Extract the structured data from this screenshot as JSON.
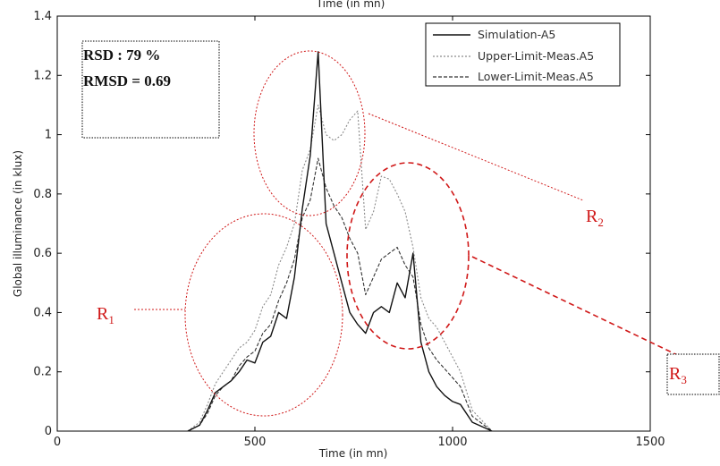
{
  "chart_data": {
    "type": "line",
    "title": "Time (in mn)",
    "xlabel": "Time (in mn)",
    "ylabel": "Global illuminance (in klux)",
    "xlim": [
      0,
      1500
    ],
    "ylim": [
      0,
      1.4
    ],
    "x_ticks": [
      0,
      500,
      1000,
      1500
    ],
    "x_tick_labels": [
      "0",
      "500",
      "1000",
      "1500"
    ],
    "y_ticks": [
      0,
      0.2,
      0.4,
      0.6,
      0.8,
      1,
      1.2,
      1.4
    ],
    "y_tick_labels": [
      "0",
      "0.2",
      "0.4",
      "0.6",
      "0.8",
      "1",
      "1.2",
      "1.4"
    ],
    "grid": false,
    "legend_position": "top-right",
    "series": [
      {
        "name": "Simulation-A5",
        "style": "solid",
        "color": "#111111",
        "x": [
          330,
          360,
          380,
          400,
          420,
          440,
          460,
          480,
          500,
          520,
          540,
          560,
          580,
          600,
          620,
          640,
          660,
          680,
          700,
          720,
          740,
          760,
          780,
          800,
          820,
          840,
          860,
          880,
          900,
          920,
          940,
          960,
          980,
          1000,
          1020,
          1050,
          1100
        ],
        "y": [
          0,
          0.02,
          0.07,
          0.13,
          0.15,
          0.17,
          0.2,
          0.24,
          0.23,
          0.3,
          0.32,
          0.4,
          0.38,
          0.52,
          0.75,
          0.93,
          1.28,
          0.7,
          0.6,
          0.5,
          0.4,
          0.36,
          0.33,
          0.4,
          0.42,
          0.4,
          0.5,
          0.45,
          0.6,
          0.3,
          0.2,
          0.15,
          0.12,
          0.1,
          0.09,
          0.03,
          0
        ]
      },
      {
        "name": "Upper-Limit-Meas.A5",
        "style": "dotted",
        "color": "#8a8a8a",
        "x": [
          330,
          360,
          380,
          400,
          420,
          440,
          460,
          480,
          500,
          520,
          540,
          560,
          580,
          600,
          620,
          640,
          660,
          680,
          700,
          720,
          740,
          760,
          780,
          800,
          820,
          840,
          860,
          880,
          900,
          920,
          940,
          960,
          980,
          1000,
          1020,
          1050,
          1100
        ],
        "y": [
          0,
          0.03,
          0.09,
          0.16,
          0.2,
          0.24,
          0.28,
          0.3,
          0.34,
          0.42,
          0.46,
          0.56,
          0.62,
          0.7,
          0.88,
          0.95,
          1.1,
          1.0,
          0.98,
          1.0,
          1.05,
          1.08,
          0.68,
          0.74,
          0.86,
          0.85,
          0.8,
          0.74,
          0.62,
          0.45,
          0.38,
          0.35,
          0.3,
          0.25,
          0.2,
          0.07,
          0
        ]
      },
      {
        "name": "Lower-Limit-Meas.A5",
        "style": "dashed",
        "color": "#333333",
        "x": [
          330,
          360,
          380,
          400,
          420,
          440,
          460,
          480,
          500,
          520,
          540,
          560,
          580,
          600,
          620,
          640,
          660,
          680,
          700,
          720,
          740,
          760,
          780,
          800,
          820,
          840,
          860,
          880,
          900,
          920,
          940,
          960,
          980,
          1000,
          1020,
          1050,
          1100
        ],
        "y": [
          0,
          0.02,
          0.06,
          0.12,
          0.15,
          0.17,
          0.22,
          0.25,
          0.27,
          0.33,
          0.36,
          0.44,
          0.5,
          0.58,
          0.72,
          0.78,
          0.92,
          0.82,
          0.76,
          0.72,
          0.65,
          0.6,
          0.46,
          0.52,
          0.58,
          0.6,
          0.62,
          0.56,
          0.52,
          0.36,
          0.28,
          0.24,
          0.21,
          0.18,
          0.15,
          0.05,
          0
        ]
      }
    ],
    "annotations": {
      "stats_box": {
        "rsd": "RSD : 79 %",
        "rmsd": "RMSD = 0.69"
      },
      "regions": [
        {
          "label": "R",
          "subscript": "1",
          "style": "dotted",
          "color": "#d01818"
        },
        {
          "label": "R",
          "subscript": "2",
          "style": "dotted",
          "color": "#d01818"
        },
        {
          "label": "R",
          "subscript": "3",
          "style": "dashed",
          "color": "#d01818"
        }
      ]
    }
  }
}
